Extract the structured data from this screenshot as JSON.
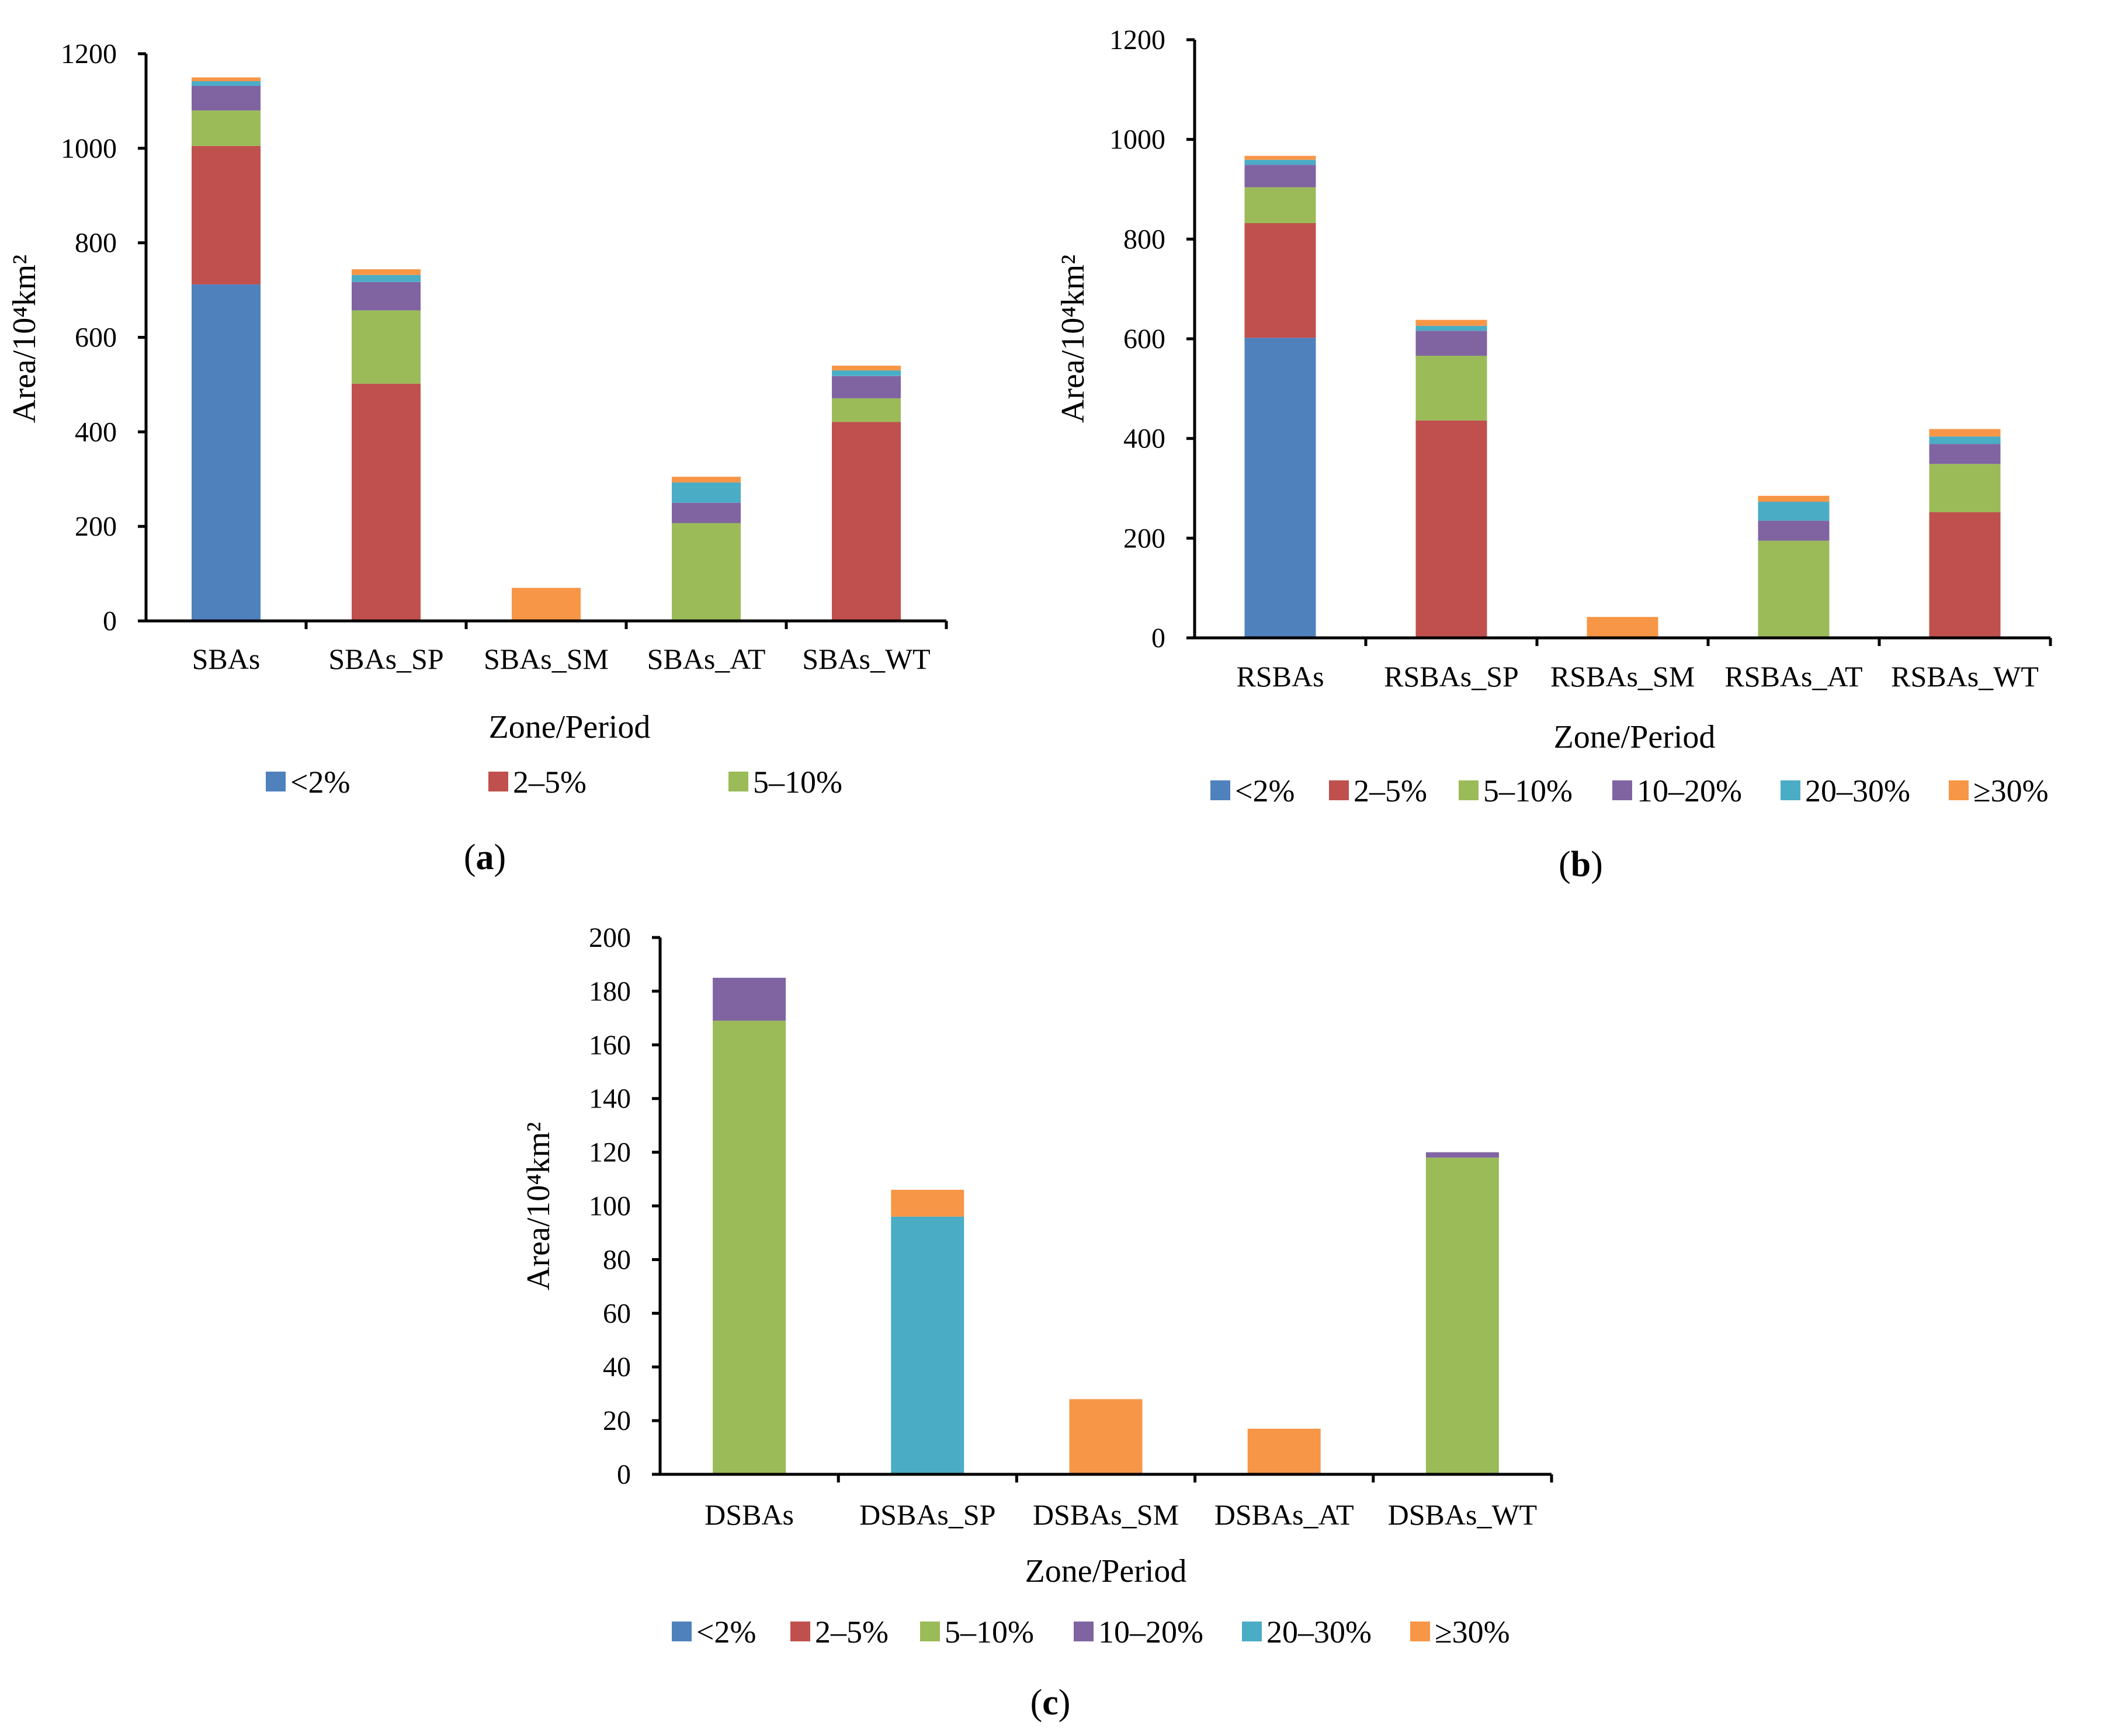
{
  "chart_data": [
    {
      "type": "bar",
      "stacked": true,
      "panel": "a",
      "panel_label": "(a)",
      "xlabel": "Zone/Period",
      "ylabel": "Area/10⁴km²",
      "ylim": [
        0,
        1200
      ],
      "yticks": [
        0,
        200,
        400,
        600,
        800,
        1000,
        1200
      ],
      "categories": [
        "SBAs",
        "SBAs_SP",
        "SBAs_SM",
        "SBAs_AT",
        "SBAs_WT"
      ],
      "series": [
        {
          "name": "<2%",
          "color": "#4F81BD",
          "values": [
            712,
            0,
            0,
            0,
            0
          ]
        },
        {
          "name": "2–5%",
          "color": "#C0504D",
          "values": [
            293,
            502,
            0,
            0,
            421
          ]
        },
        {
          "name": "5–10%",
          "color": "#9BBB59",
          "values": [
            75,
            155,
            0,
            207,
            50
          ]
        },
        {
          "name": "10–20%",
          "color": "#8064A2",
          "values": [
            52,
            60,
            0,
            43,
            47
          ]
        },
        {
          "name": "20–30%",
          "color": "#4BACC6",
          "values": [
            10,
            15,
            0,
            43,
            12
          ]
        },
        {
          "name": "≥30%",
          "color": "#F79646",
          "values": [
            8,
            12,
            70,
            12,
            10
          ]
        }
      ],
      "legend": [
        "<2%",
        "2–5%",
        "5–10%"
      ]
    },
    {
      "type": "bar",
      "stacked": true,
      "panel": "b",
      "panel_label": "(b)",
      "xlabel": "Zone/Period",
      "ylabel": "Area/10⁴km²",
      "ylim": [
        0,
        1200
      ],
      "yticks": [
        0,
        200,
        400,
        600,
        800,
        1000,
        1200
      ],
      "categories": [
        "RSBAs",
        "RSBAs_SP",
        "RSBAs_SM",
        "RSBAs_AT",
        "RSBAs_WT"
      ],
      "series": [
        {
          "name": "<2%",
          "color": "#4F81BD",
          "values": [
            602,
            0,
            0,
            0,
            0
          ]
        },
        {
          "name": "2–5%",
          "color": "#C0504D",
          "values": [
            230,
            436,
            0,
            0,
            252
          ]
        },
        {
          "name": "5–10%",
          "color": "#9BBB59",
          "values": [
            72,
            130,
            0,
            195,
            97
          ]
        },
        {
          "name": "10–20%",
          "color": "#8064A2",
          "values": [
            45,
            50,
            0,
            40,
            40
          ]
        },
        {
          "name": "20–30%",
          "color": "#4BACC6",
          "values": [
            10,
            10,
            0,
            38,
            15
          ]
        },
        {
          "name": "≥30%",
          "color": "#F79646",
          "values": [
            8,
            12,
            42,
            12,
            15
          ]
        }
      ],
      "legend": [
        "<2%",
        "2–5%",
        "5–10%",
        "10–20%",
        "20–30%",
        "≥30%"
      ]
    },
    {
      "type": "bar",
      "stacked": true,
      "panel": "c",
      "panel_label": "(c)",
      "xlabel": "Zone/Period",
      "ylabel": "Area/10⁴km²",
      "ylim": [
        0,
        200
      ],
      "yticks": [
        0,
        20,
        40,
        60,
        80,
        100,
        120,
        140,
        160,
        180,
        200
      ],
      "categories": [
        "DSBAs",
        "DSBAs_SP",
        "DSBAs_SM",
        "DSBAs_AT",
        "DSBAs_WT"
      ],
      "series": [
        {
          "name": "<2%",
          "color": "#4F81BD",
          "values": [
            0,
            0,
            0,
            0,
            0
          ]
        },
        {
          "name": "2–5%",
          "color": "#C0504D",
          "values": [
            0,
            0,
            0,
            0,
            0
          ]
        },
        {
          "name": "5–10%",
          "color": "#9BBB59",
          "values": [
            169,
            0,
            0,
            0,
            118
          ]
        },
        {
          "name": "10–20%",
          "color": "#8064A2",
          "values": [
            16,
            0,
            0,
            0,
            2
          ]
        },
        {
          "name": "20–30%",
          "color": "#4BACC6",
          "values": [
            0,
            96,
            0,
            0,
            0
          ]
        },
        {
          "name": "≥30%",
          "color": "#F79646",
          "values": [
            0,
            10,
            28,
            17,
            0
          ]
        }
      ],
      "legend": [
        "<2%",
        "2–5%",
        "5–10%",
        "10–20%",
        "20–30%",
        "≥30%"
      ]
    }
  ]
}
